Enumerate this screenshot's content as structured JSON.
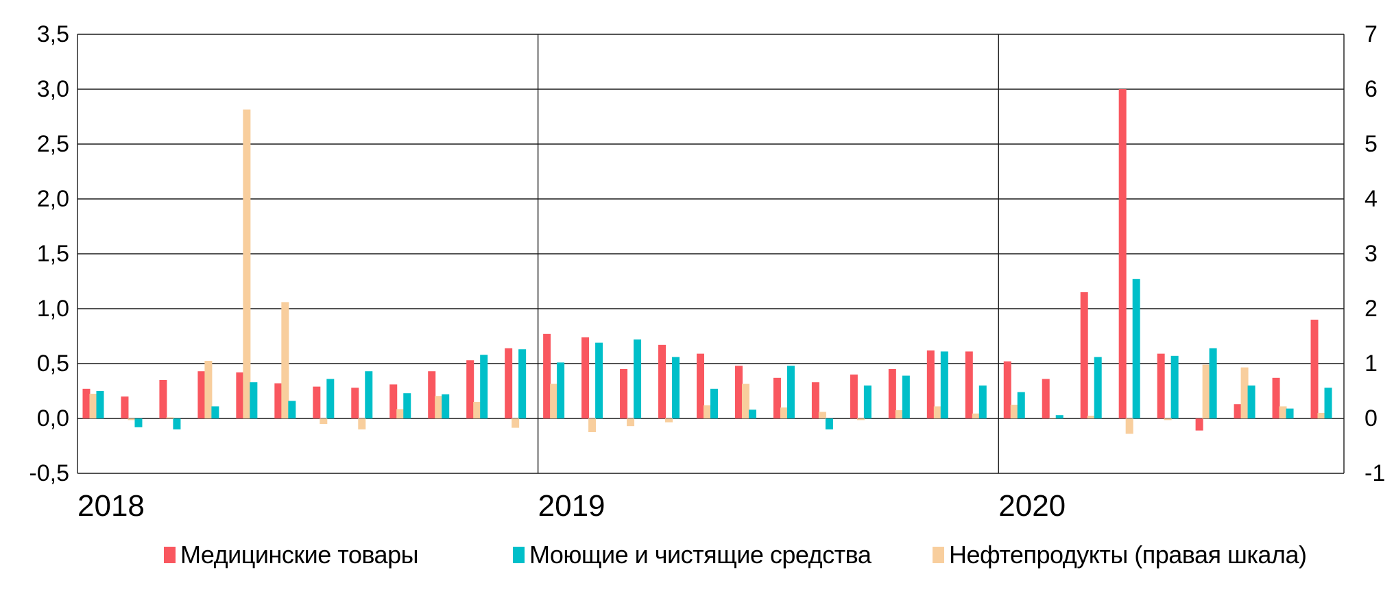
{
  "chart_data": {
    "type": "bar",
    "title": "",
    "grid": "on",
    "legend_position": "bottom",
    "left_axis": {
      "min": -0.5,
      "max": 3.5,
      "step": 0.5,
      "ticks": [
        {
          "v": 3.5,
          "label": "3,5"
        },
        {
          "v": 3.0,
          "label": "3,0"
        },
        {
          "v": 2.5,
          "label": "2,5"
        },
        {
          "v": 2.0,
          "label": "2,0"
        },
        {
          "v": 1.5,
          "label": "1,5"
        },
        {
          "v": 1.0,
          "label": "1,0"
        },
        {
          "v": 0.5,
          "label": "0,5"
        },
        {
          "v": 0.0,
          "label": "0,0"
        },
        {
          "v": -0.5,
          "label": "-0,5"
        }
      ]
    },
    "right_axis": {
      "min": -1,
      "max": 7,
      "step": 1,
      "ticks": [
        {
          "v": 7,
          "label": "7"
        },
        {
          "v": 6,
          "label": "6"
        },
        {
          "v": 5,
          "label": "5"
        },
        {
          "v": 4,
          "label": "4"
        },
        {
          "v": 3,
          "label": "3"
        },
        {
          "v": 2,
          "label": "2"
        },
        {
          "v": 1,
          "label": "1"
        },
        {
          "v": 0,
          "label": "0"
        },
        {
          "v": -1,
          "label": "-1"
        }
      ]
    },
    "x_years": [
      {
        "label": "2018",
        "months": 12
      },
      {
        "label": "2019",
        "months": 12
      },
      {
        "label": "2020",
        "months": 9
      }
    ],
    "series": [
      {
        "key": "medical",
        "name": "Медицинские товары",
        "color": "#F9575F",
        "axis": "left",
        "values": [
          0.27,
          0.2,
          0.35,
          0.43,
          0.42,
          0.32,
          0.29,
          0.28,
          0.31,
          0.43,
          0.53,
          0.64,
          0.77,
          0.74,
          0.45,
          0.67,
          0.59,
          0.48,
          0.37,
          0.33,
          0.4,
          0.45,
          0.62,
          0.61,
          0.52,
          0.36,
          1.15,
          3.0,
          0.59,
          -0.11,
          0.13,
          0.37,
          0.9
        ]
      },
      {
        "key": "detergents",
        "name": "Моющие и чистящие средства",
        "color": "#00BFC9",
        "axis": "left",
        "values": [
          0.25,
          -0.08,
          -0.1,
          0.11,
          0.33,
          0.16,
          0.36,
          0.43,
          0.23,
          0.22,
          0.58,
          0.63,
          0.51,
          0.69,
          0.72,
          0.56,
          0.27,
          0.08,
          0.48,
          -0.1,
          0.3,
          0.39,
          0.61,
          0.3,
          0.24,
          0.03,
          0.56,
          1.27,
          0.57,
          0.64,
          0.3,
          0.09,
          0.28
        ]
      },
      {
        "key": "petroleum",
        "name": "Нефтепродукты (правая шкала)",
        "color": "#F8CE9D",
        "axis": "right",
        "values": [
          0.45,
          -0.03,
          0.02,
          1.05,
          5.63,
          2.12,
          -0.1,
          -0.2,
          0.17,
          0.41,
          0.3,
          -0.17,
          0.63,
          -0.25,
          -0.14,
          -0.07,
          0.24,
          0.63,
          0.2,
          0.12,
          -0.03,
          0.15,
          0.22,
          0.09,
          0.25,
          0.01,
          0.05,
          -0.28,
          -0.03,
          0.98,
          0.93,
          0.22,
          0.1
        ]
      }
    ],
    "grid_color": "#1a1a1a",
    "text_color": "#000000"
  }
}
